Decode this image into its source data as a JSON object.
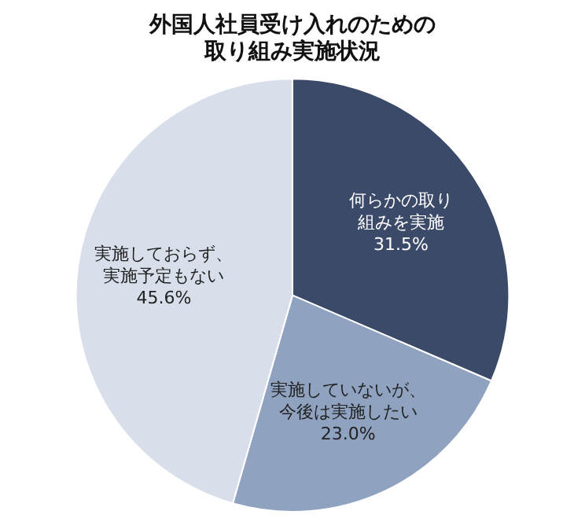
{
  "chart_data": {
    "type": "pie",
    "title": "外国人社員受け入れのための取り組み実施状況",
    "categories": [
      "何らかの取り組みを実施",
      "実施していないが、今後は実施したい",
      "実施しておらず、実施予定もない"
    ],
    "values": [
      31.5,
      23.0,
      45.6
    ],
    "colors": [
      "#3c4a69",
      "#8fa2c0",
      "#d8dfea"
    ],
    "value_labels": [
      "31.5%",
      "23.0%",
      "45.6%"
    ],
    "legend": false
  }
}
